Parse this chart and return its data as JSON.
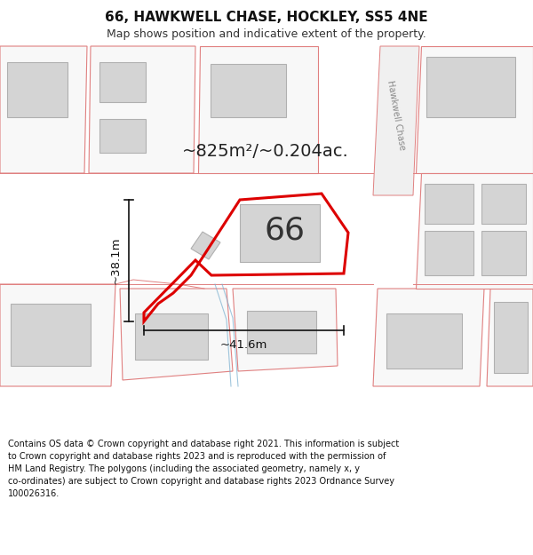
{
  "title": "66, HAWKWELL CHASE, HOCKLEY, SS5 4NE",
  "subtitle": "Map shows position and indicative extent of the property.",
  "footer": "Contains OS data © Crown copyright and database right 2021. This information is subject\nto Crown copyright and database rights 2023 and is reproduced with the permission of\nHM Land Registry. The polygons (including the associated geometry, namely x, y\nco-ordinates) are subject to Crown copyright and database rights 2023 Ordnance Survey\n100026316.",
  "area_label": "~825m²/~0.204ac.",
  "width_label": "~41.6m",
  "height_label": "~38.1m",
  "number_label": "66",
  "bg_color": "#ffffff",
  "map_bg": "#f8f8f8",
  "plot_edge": "#dd0000",
  "building_fill": "#d4d4d4",
  "building_edge": "#b0b0b0",
  "boundary_edge": "#e08080",
  "boundary_fill": "#f8f8f8",
  "street_label": "Hawkwell Chase",
  "dim_color": "#111111",
  "text_color": "#222222",
  "title_fontsize": 11,
  "subtitle_fontsize": 9,
  "footer_fontsize": 7,
  "area_fontsize": 14,
  "number_fontsize": 26,
  "dim_fontsize": 9.5
}
